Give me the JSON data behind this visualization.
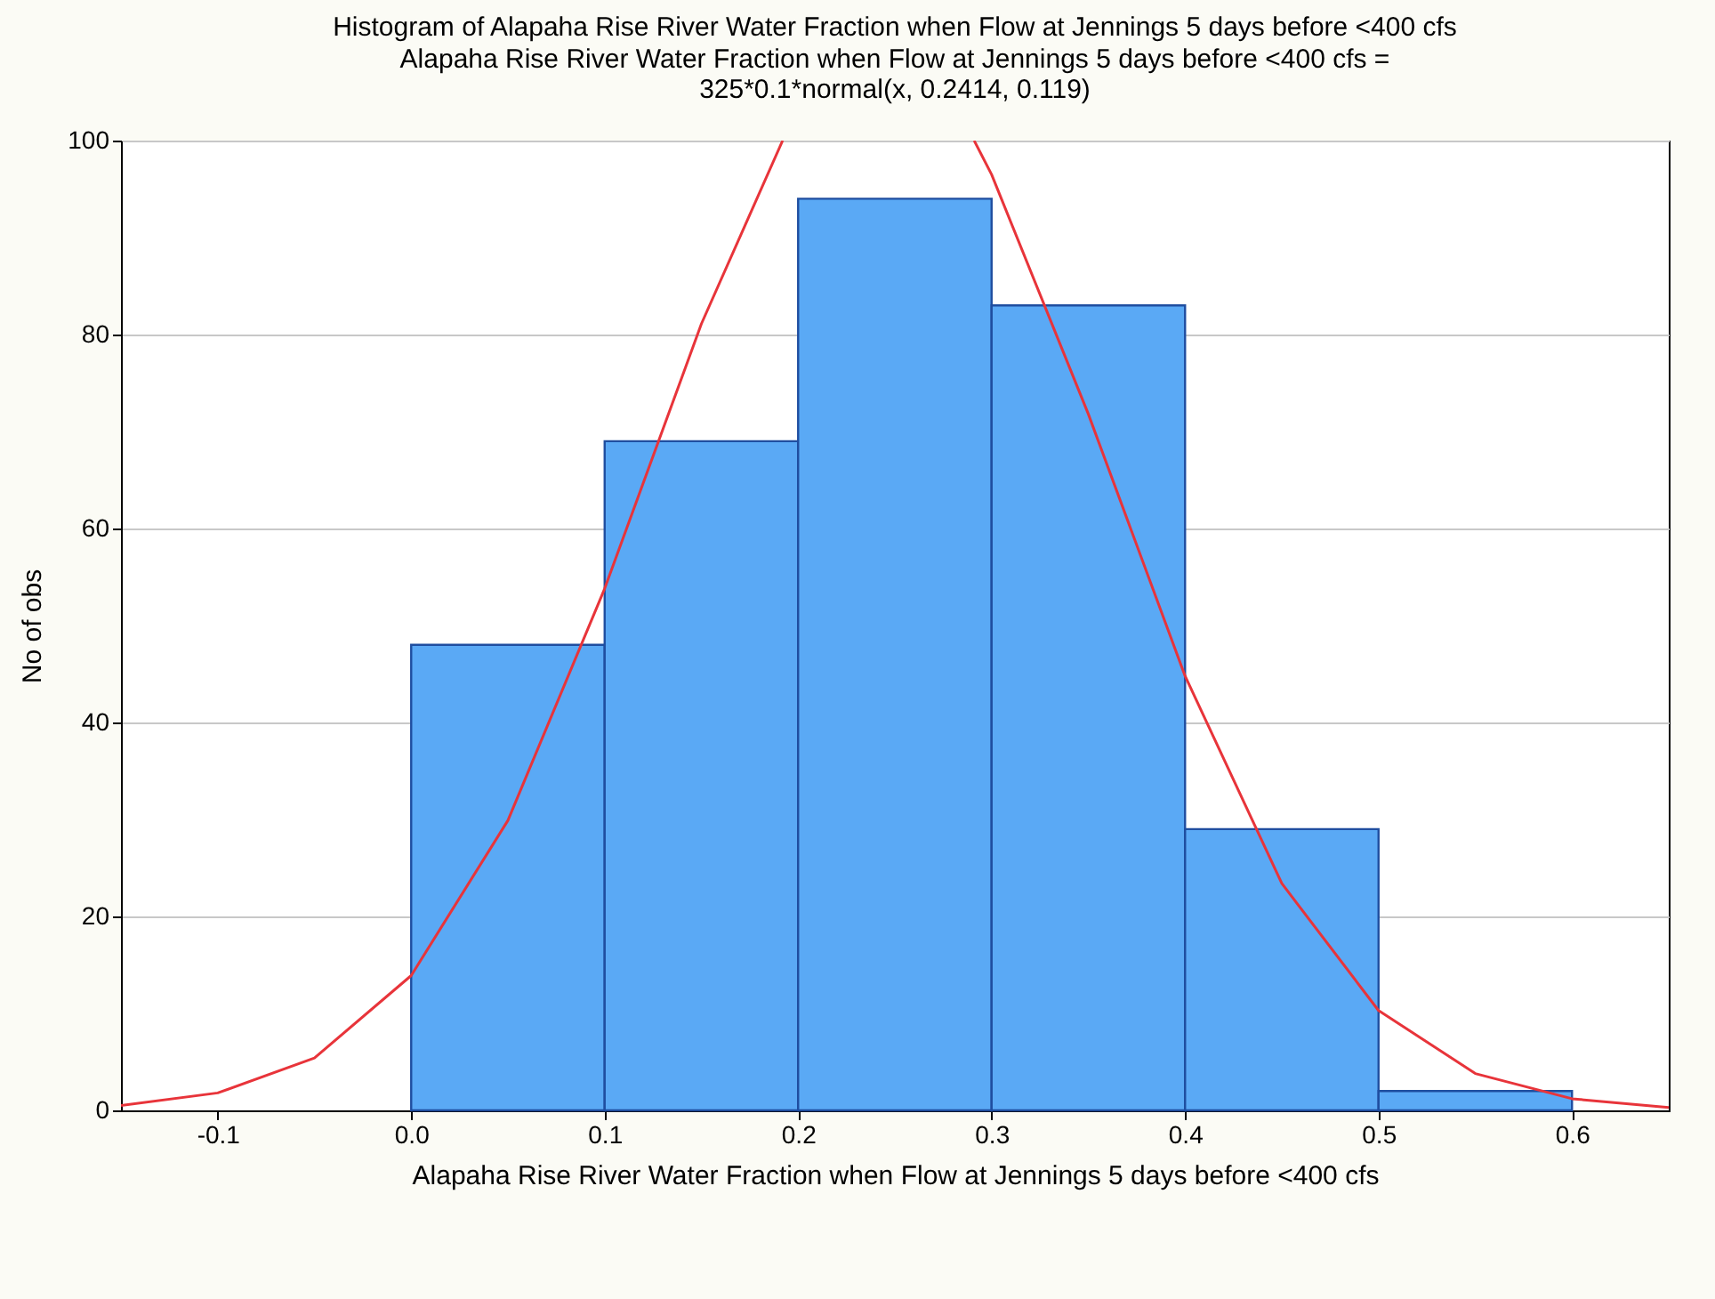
{
  "chart_data": {
    "type": "histogram",
    "title": "Histogram of Alapaha Rise River Water Fraction when Flow at Jennings 5 days before <400 cfs",
    "subtitle": "Alapaha Rise River Water Fraction when Flow at Jennings 5 days before <400 cfs = 325*0.1*normal(x, 0.2414, 0.119)",
    "xlabel": "Alapaha Rise River Water Fraction when Flow at Jennings 5 days before <400 cfs",
    "ylabel": "No of obs",
    "bins": [
      0.0,
      0.1,
      0.2,
      0.3,
      0.4,
      0.5,
      0.6
    ],
    "series": [
      {
        "color": "#5aa9f5",
        "values": [
          48,
          69,
          94,
          83,
          29,
          2
        ]
      },
      {
        "type": "line",
        "color": "#e8343a",
        "x": [
          -0.15,
          -0.1,
          -0.05,
          0.0,
          0.05,
          0.1,
          0.15,
          0.192,
          0.2,
          0.25,
          0.291,
          0.3,
          0.35,
          0.4,
          0.45,
          0.5,
          0.55,
          0.6,
          0.65
        ],
        "values": [
          0.5,
          1.8,
          5.4,
          13.9,
          29.9,
          53.8,
          81.1,
          100,
          null,
          null,
          100,
          96.5,
          71.8,
          44.8,
          23.4,
          10.3,
          3.8,
          1.2,
          0.3
        ]
      }
    ],
    "xlim": [
      -0.15,
      0.65
    ],
    "xticks": [
      -0.1,
      {
        "value": 0,
        "label": "0.0"
      },
      0.1,
      0.2,
      0.3,
      0.4,
      0.5,
      0.6
    ],
    "ylim": [
      0,
      100
    ],
    "yticks": [
      0,
      20,
      40,
      60,
      80,
      100
    ],
    "grid": "y"
  }
}
